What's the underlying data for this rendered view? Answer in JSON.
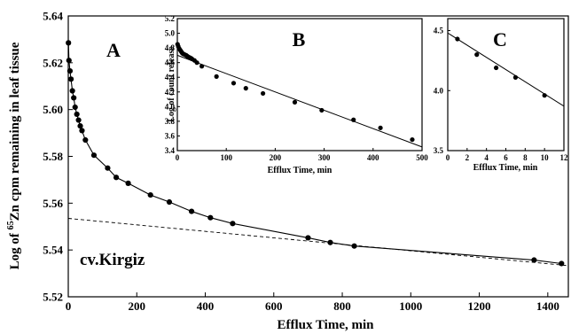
{
  "chart_data": [
    {
      "id": "A",
      "type": "scatter",
      "panel_label": "A",
      "annotation": "cv.Kirgiz",
      "xlabel": "Efflux Time, min",
      "ylabel": "Log of 65Zn cpm remaining in leaf tissue",
      "ylabel_parts": {
        "pre": "Log of ",
        "sup": "65",
        "post": "Zn cpm remaining in leaf tissue"
      },
      "xlim": [
        0,
        1460
      ],
      "ylim": [
        5.52,
        5.64
      ],
      "xticks": [
        0,
        200,
        400,
        600,
        800,
        1000,
        1200,
        1400
      ],
      "yticks": [
        5.52,
        5.54,
        5.56,
        5.58,
        5.6,
        5.62,
        5.64
      ],
      "grid": false,
      "series": [
        {
          "style": "points-with-smooth-line",
          "x": [
            0.5,
            2,
            5,
            8,
            12,
            16,
            20,
            25,
            30,
            35,
            40,
            50,
            75,
            115,
            140,
            175,
            240,
            295,
            360,
            415,
            480,
            700,
            765,
            835,
            1360,
            1440
          ],
          "y": [
            5.6285,
            5.621,
            5.6165,
            5.613,
            5.608,
            5.605,
            5.601,
            5.598,
            5.5955,
            5.593,
            5.591,
            5.587,
            5.5805,
            5.575,
            5.571,
            5.5685,
            5.5635,
            5.5605,
            5.5565,
            5.5538,
            5.5513,
            5.5452,
            5.5432,
            5.5417,
            5.5357,
            5.5342
          ]
        },
        {
          "style": "dashed-line",
          "x": [
            0,
            1460
          ],
          "y": [
            5.5535,
            5.5333
          ]
        }
      ]
    },
    {
      "id": "B",
      "type": "scatter",
      "panel_label": "B",
      "xlabel": "Efflux Time, min",
      "ylabel": "Log of count release",
      "xlim": [
        0,
        500
      ],
      "ylim": [
        3.4,
        5.2
      ],
      "xticks": [
        0,
        100,
        200,
        300,
        400,
        500
      ],
      "yticks": [
        3.4,
        3.6,
        3.8,
        4.0,
        4.2,
        4.4,
        4.6,
        4.8,
        5.0,
        5.2
      ],
      "grid": false,
      "series": [
        {
          "style": "points-with-regression-line",
          "x": [
            0.5,
            2,
            4,
            6,
            8,
            10,
            12,
            15,
            18,
            20,
            22,
            25,
            28,
            30,
            35,
            40,
            50,
            80,
            115,
            140,
            175,
            240,
            295,
            360,
            415,
            480
          ],
          "y": [
            4.85,
            4.82,
            4.79,
            4.77,
            4.75,
            4.73,
            4.72,
            4.71,
            4.7,
            4.69,
            4.68,
            4.67,
            4.66,
            4.65,
            4.63,
            4.6,
            4.55,
            4.41,
            4.32,
            4.25,
            4.18,
            4.06,
            3.95,
            3.82,
            3.71,
            3.55
          ],
          "line_x": [
            0,
            500
          ],
          "line_y": [
            4.7,
            3.45
          ]
        }
      ]
    },
    {
      "id": "C",
      "type": "scatter",
      "panel_label": "C",
      "xlabel": "Efflux Time, min",
      "xlim": [
        0,
        12
      ],
      "ylim": [
        3.5,
        4.6
      ],
      "xticks": [
        0,
        2,
        4,
        6,
        8,
        10,
        12
      ],
      "yticks": [
        3.5,
        4.0,
        4.5
      ],
      "grid": false,
      "series": [
        {
          "style": "points-with-regression-line",
          "x": [
            1,
            3,
            5,
            7,
            10
          ],
          "y": [
            4.43,
            4.3,
            4.19,
            4.11,
            3.96
          ],
          "line_x": [
            0,
            12
          ],
          "line_y": [
            4.48,
            3.87
          ]
        }
      ]
    }
  ]
}
